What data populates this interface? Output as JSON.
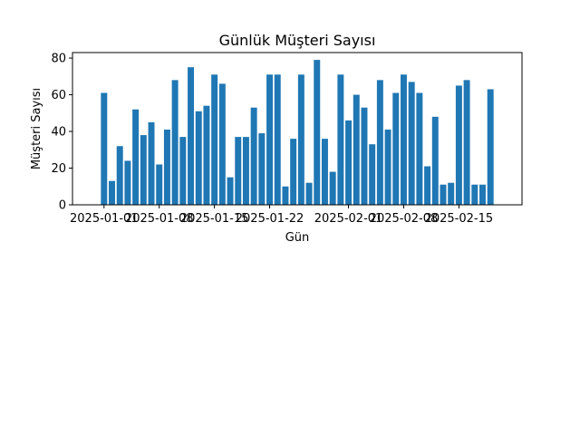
{
  "chart_data": {
    "type": "bar",
    "title": "Günlük Müşteri Sayısı",
    "xlabel": "Gün",
    "ylabel": "Müşteri Sayısı",
    "x": [
      "2025-01-01",
      "2025-01-02",
      "2025-01-03",
      "2025-01-04",
      "2025-01-05",
      "2025-01-06",
      "2025-01-07",
      "2025-01-08",
      "2025-01-09",
      "2025-01-10",
      "2025-01-11",
      "2025-01-12",
      "2025-01-13",
      "2025-01-14",
      "2025-01-15",
      "2025-01-16",
      "2025-01-17",
      "2025-01-18",
      "2025-01-19",
      "2025-01-20",
      "2025-01-21",
      "2025-01-22",
      "2025-01-23",
      "2025-01-24",
      "2025-01-25",
      "2025-01-26",
      "2025-01-27",
      "2025-01-28",
      "2025-01-29",
      "2025-01-30",
      "2025-01-31",
      "2025-02-01",
      "2025-02-02",
      "2025-02-03",
      "2025-02-04",
      "2025-02-05",
      "2025-02-06",
      "2025-02-07",
      "2025-02-08",
      "2025-02-09",
      "2025-02-10",
      "2025-02-11",
      "2025-02-12",
      "2025-02-13",
      "2025-02-14",
      "2025-02-15",
      "2025-02-16",
      "2025-02-17",
      "2025-02-18",
      "2025-02-19"
    ],
    "values": [
      61,
      13,
      32,
      24,
      52,
      38,
      45,
      22,
      41,
      68,
      37,
      75,
      51,
      54,
      71,
      66,
      15,
      37,
      37,
      53,
      39,
      71,
      71,
      10,
      36,
      71,
      12,
      79,
      36,
      18,
      71,
      46,
      60,
      53,
      33,
      68,
      41,
      61,
      71,
      67,
      61,
      21,
      48,
      11,
      12,
      65,
      68,
      11,
      11,
      63
    ],
    "xticks": [
      "2025-01-01",
      "2025-01-08",
      "2025-01-15",
      "2025-01-22",
      "2025-02-01",
      "2025-02-08",
      "2025-02-15"
    ],
    "xlim": [
      "2024-12-28",
      "2025-02-23"
    ],
    "yticks": [
      0,
      20,
      40,
      60,
      80
    ],
    "ylim": [
      0,
      83
    ],
    "bar_color": "#1f77b4",
    "grid": false,
    "legend": "none"
  }
}
